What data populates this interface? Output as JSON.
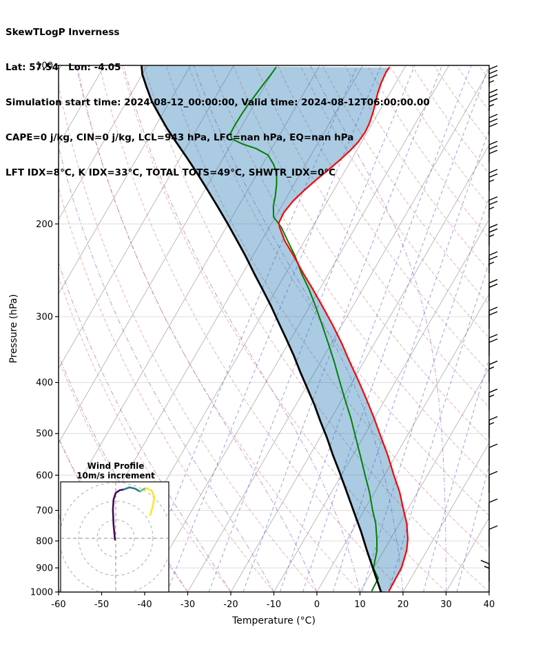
{
  "header": {
    "line1": "SkewTLogP Inverness",
    "line2": "Lat: 57.54   Lon: -4.05",
    "line3": "Simulation start time: 2024-08-12_00:00:00, Valid time: 2024-08-12T06:00:00.00",
    "line4": "CAPE=0 j/kg, CIN=0 j/kg, LCL=943 hPa, LFC=nan hPa, EQ=nan hPa",
    "line5": "LFT IDX=8°C, K IDX=33°C, TOTAL TOTS=49°C, SHWTR_IDX=0°C"
  },
  "chart_data": {
    "type": "line",
    "subtype": "skewt-logp",
    "title": "SkewTLogP Inverness",
    "xlabel": "Temperature (°C)",
    "ylabel": "Pressure (hPa)",
    "x_ticks": [
      -60,
      -50,
      -40,
      -30,
      -20,
      -10,
      0,
      10,
      20,
      30,
      40
    ],
    "p_ticks": [
      100,
      200,
      300,
      400,
      500,
      600,
      700,
      800,
      900,
      1000
    ],
    "t_range": [
      -60,
      40
    ],
    "p_range": [
      100,
      1000
    ],
    "skew_deg": 30,
    "grid": true,
    "background": {
      "isotherms": {
        "step": 10,
        "color": "#b3b3b3"
      },
      "dry_adiabats": {
        "theta_start": -60,
        "theta_end": 200,
        "step": 10,
        "color": "#d96a6a"
      },
      "moist_adiabats": {
        "starts": [
          -60,
          -50,
          -40,
          -30,
          -20,
          -10,
          0,
          10,
          20,
          30
        ],
        "color": "#9a68c0"
      },
      "mixing_ratios": {
        "values": [
          0.1,
          0.2,
          0.5,
          1,
          2,
          3,
          5,
          8,
          12,
          20,
          32
        ],
        "color": "#3d3dcf"
      }
    },
    "shade": {
      "label": "negative-area-shade",
      "color": "#1f77b4",
      "opacity": 0.38
    },
    "temperature": {
      "name": "temperature",
      "color": "#ff0000",
      "width": 2.2,
      "points": [
        [
          994,
          16.6
        ],
        [
          900,
          16.4
        ],
        [
          835,
          15.3
        ],
        [
          793,
          14.0
        ],
        [
          740,
          11.6
        ],
        [
          700,
          9.2
        ],
        [
          646,
          5.8
        ],
        [
          600,
          2.2
        ],
        [
          551,
          -1.8
        ],
        [
          508,
          -5.9
        ],
        [
          468,
          -10.0
        ],
        [
          431,
          -14.3
        ],
        [
          397,
          -18.7
        ],
        [
          366,
          -23.2
        ],
        [
          336,
          -27.8
        ],
        [
          310,
          -32.4
        ],
        [
          287,
          -37.0
        ],
        [
          266,
          -41.6
        ],
        [
          248,
          -46.0
        ],
        [
          230,
          -50.5
        ],
        [
          215,
          -54.7
        ],
        [
          203,
          -57.6
        ],
        [
          199,
          -58.4
        ],
        [
          190,
          -58.6
        ],
        [
          181,
          -58.0
        ],
        [
          173,
          -56.9
        ],
        [
          165,
          -55.5
        ],
        [
          158,
          -54.0
        ],
        [
          151,
          -52.6
        ],
        [
          145,
          -51.5
        ],
        [
          140,
          -50.8
        ],
        [
          134,
          -50.5
        ],
        [
          129,
          -50.7
        ],
        [
          123,
          -51.3
        ],
        [
          118,
          -52.0
        ],
        [
          113,
          -52.8
        ],
        [
          108,
          -53.4
        ],
        [
          103,
          -53.7
        ],
        [
          101,
          -53.6
        ]
      ]
    },
    "dewpoint": {
      "name": "dewpoint",
      "color": "#008000",
      "width": 2.0,
      "points": [
        [
          994,
          12.6
        ],
        [
          942,
          12.4
        ],
        [
          900,
          9.9
        ],
        [
          835,
          8.4
        ],
        [
          793,
          6.8
        ],
        [
          740,
          4.4
        ],
        [
          700,
          2.0
        ],
        [
          646,
          -1.2
        ],
        [
          600,
          -4.5
        ],
        [
          551,
          -8.2
        ],
        [
          508,
          -11.8
        ],
        [
          468,
          -15.4
        ],
        [
          431,
          -19.3
        ],
        [
          397,
          -23.1
        ],
        [
          366,
          -26.8
        ],
        [
          336,
          -30.9
        ],
        [
          310,
          -34.8
        ],
        [
          287,
          -38.6
        ],
        [
          266,
          -42.5
        ],
        [
          248,
          -46.4
        ],
        [
          230,
          -50.2
        ],
        [
          215,
          -54.0
        ],
        [
          203,
          -57.2
        ],
        [
          194,
          -60.4
        ],
        [
          185,
          -61.9
        ],
        [
          177,
          -62.8
        ],
        [
          168,
          -64.1
        ],
        [
          160,
          -65.6
        ],
        [
          154,
          -67.5
        ],
        [
          148,
          -70.0
        ],
        [
          144,
          -73.5
        ],
        [
          141,
          -77.4
        ],
        [
          138,
          -80.5
        ],
        [
          135,
          -81.6
        ],
        [
          130,
          -81.7
        ],
        [
          124,
          -81.6
        ],
        [
          119,
          -81.4
        ],
        [
          114,
          -81.0
        ],
        [
          109,
          -80.6
        ],
        [
          104,
          -80.1
        ],
        [
          101,
          -79.9
        ]
      ]
    },
    "parcel": {
      "name": "parcel-profile",
      "color": "#000000",
      "width": 2.8,
      "points": [
        [
          1000,
          14.9
        ],
        [
          914,
          10.5
        ],
        [
          835,
          6.1
        ],
        [
          767,
          2.1
        ],
        [
          718,
          -1.2
        ],
        [
          672,
          -4.5
        ],
        [
          629,
          -7.8
        ],
        [
          589,
          -11.1
        ],
        [
          548,
          -14.8
        ],
        [
          509,
          -18.4
        ],
        [
          474,
          -22.1
        ],
        [
          441,
          -25.7
        ],
        [
          410,
          -29.6
        ],
        [
          382,
          -33.4
        ],
        [
          355,
          -37.2
        ],
        [
          330,
          -41.2
        ],
        [
          307,
          -45.2
        ],
        [
          286,
          -49.1
        ],
        [
          266,
          -53.3
        ],
        [
          248,
          -57.4
        ],
        [
          230,
          -61.7
        ],
        [
          214,
          -66.0
        ],
        [
          199,
          -70.4
        ],
        [
          185,
          -74.9
        ],
        [
          172,
          -79.5
        ],
        [
          160,
          -84.1
        ],
        [
          149,
          -88.8
        ],
        [
          140,
          -93.0
        ],
        [
          132,
          -96.9
        ],
        [
          124,
          -100.7
        ],
        [
          117,
          -104.2
        ],
        [
          110,
          -107.3
        ],
        [
          104,
          -110.0
        ],
        [
          100,
          -111.4
        ]
      ]
    },
    "wind_barbs": [
      {
        "p": 110,
        "kt": 35
      },
      {
        "p": 122,
        "kt": 35
      },
      {
        "p": 136,
        "kt": 30
      },
      {
        "p": 153,
        "kt": 30
      },
      {
        "p": 173,
        "kt": 25
      },
      {
        "p": 195,
        "kt": 25
      },
      {
        "p": 220,
        "kt": 25
      },
      {
        "p": 248,
        "kt": 25
      },
      {
        "p": 280,
        "kt": 20
      },
      {
        "p": 316,
        "kt": 20
      },
      {
        "p": 356,
        "kt": 20
      },
      {
        "p": 400,
        "kt": 15
      },
      {
        "p": 452,
        "kt": 15
      },
      {
        "p": 510,
        "kt": 15
      },
      {
        "p": 575,
        "kt": 10
      },
      {
        "p": 648,
        "kt": 10
      },
      {
        "p": 731,
        "kt": 10
      },
      {
        "p": 822,
        "kt": 10
      },
      {
        "p": 956,
        "kt": 15,
        "flip": true
      }
    ],
    "hodograph": {
      "title_line1": "Wind Profile",
      "title_line2": "10m/s increment",
      "ring_increment_ms": 10,
      "rings": [
        10,
        20,
        30
      ],
      "segments": [
        {
          "color": "#46085c",
          "points": [
            [
              -0.4,
              -0.7
            ],
            [
              -1.2,
              7.4
            ],
            [
              -1.5,
              15.6
            ],
            [
              -1.1,
              21.1
            ],
            [
              0,
              24.4
            ],
            [
              2.2,
              25.9
            ],
            [
              4.4,
              26.3
            ]
          ]
        },
        {
          "color": "#2a788e",
          "points": [
            [
              4.4,
              26.3
            ],
            [
              7.4,
              27.4
            ],
            [
              10.4,
              26.7
            ],
            [
              13,
              25.2
            ]
          ]
        },
        {
          "color": "#5ec962",
          "points": [
            [
              13,
              25.2
            ],
            [
              14.7,
              26.3
            ],
            [
              16.3,
              27.0
            ]
          ]
        },
        {
          "color": "#fde725",
          "points": [
            [
              16.3,
              27.0
            ],
            [
              19.3,
              25.6
            ],
            [
              20.7,
              22.2
            ],
            [
              20.0,
              17.4
            ],
            [
              18.5,
              12.6
            ]
          ]
        }
      ]
    }
  }
}
